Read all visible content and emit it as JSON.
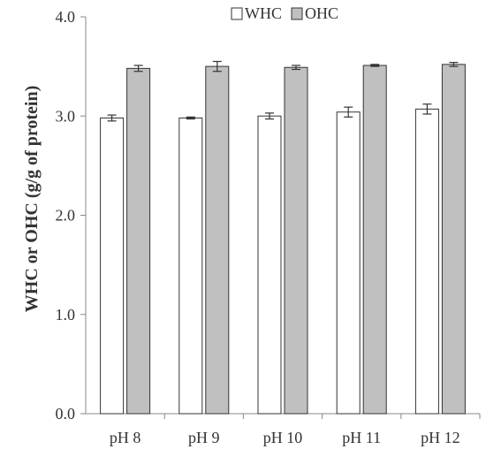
{
  "chart_data": {
    "type": "bar",
    "title": "",
    "xlabel": "",
    "ylabel": "WHC or OHC (g/g of protein)",
    "ylim": [
      0,
      4
    ],
    "yticks": [
      "0.0",
      "1.0",
      "2.0",
      "3.0",
      "4.0"
    ],
    "ytick_values": [
      0,
      1,
      2,
      3,
      4
    ],
    "grid": false,
    "legend_position": "top",
    "categories": [
      "pH 8",
      "pH 9",
      "pH 10",
      "pH 11",
      "pH 12"
    ],
    "series": [
      {
        "name": "WHC",
        "color": "#ffffff",
        "values": [
          2.98,
          2.98,
          3.0,
          3.04,
          3.07
        ],
        "errors": [
          0.03,
          0.01,
          0.03,
          0.05,
          0.05
        ]
      },
      {
        "name": "OHC",
        "color": "#c0c0c0",
        "values": [
          3.48,
          3.5,
          3.49,
          3.51,
          3.52
        ],
        "errors": [
          0.03,
          0.05,
          0.02,
          0.01,
          0.02
        ]
      }
    ]
  }
}
